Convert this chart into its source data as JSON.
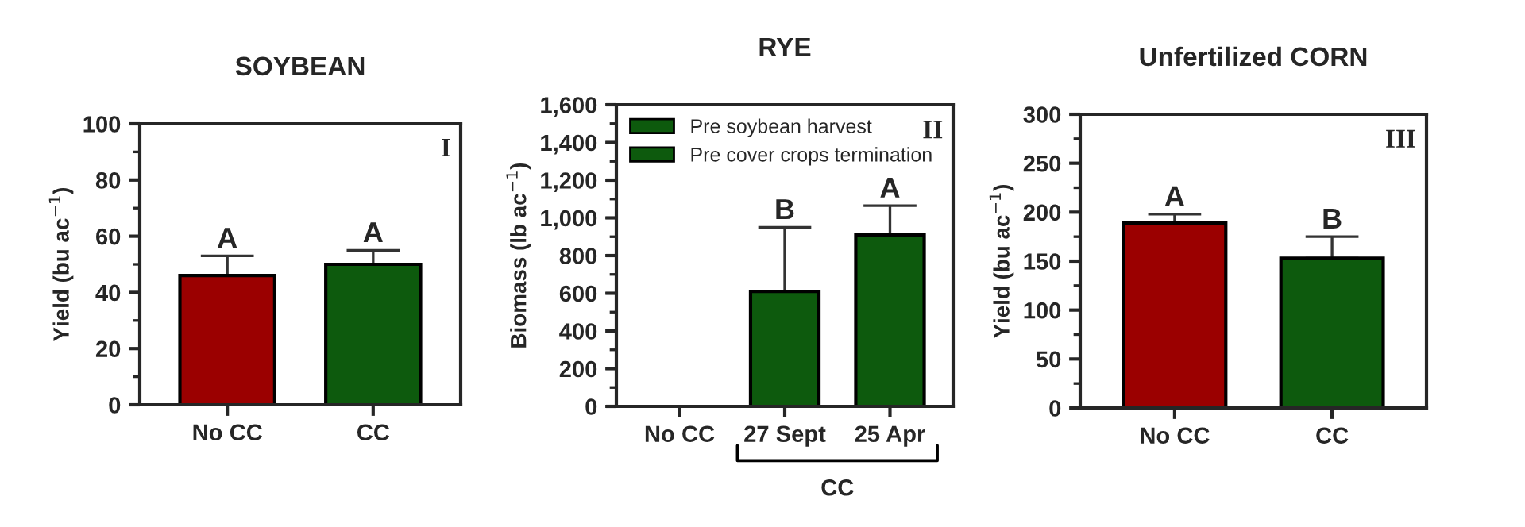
{
  "chart_data": [
    {
      "type": "bar",
      "title": "SOYBEAN",
      "ylabel": "Yield (bu ac$^{−1}$)",
      "categories": [
        "No CC",
        "CC"
      ],
      "values": [
        46,
        50
      ],
      "colors": [
        "#9b0000",
        "#0d5a0d"
      ],
      "errors": [
        [
          46,
          53
        ],
        [
          50,
          55
        ]
      ],
      "ylim": [
        0,
        100
      ],
      "yticks": [
        0,
        20,
        40,
        60,
        80,
        100
      ],
      "grid": false,
      "legend": false,
      "annotations": [
        "I",
        {
          "text": "A",
          "x": "No CC",
          "y": 53
        },
        {
          "text": "A",
          "x": "CC",
          "y": 55
        }
      ]
    },
    {
      "type": "bar",
      "title": "RYE",
      "ylabel": "Biomass (lb ac$^{−1}$)",
      "xlabel": "CC",
      "categories": [
        "No CC",
        "27 Sept",
        "25 Apr"
      ],
      "series": [
        {
          "name": "Pre soybean harvest",
          "color": "#0d5a0d",
          "values": [
            null,
            610,
            null
          ],
          "errors": [
            null,
            [
              610,
              950
            ],
            null
          ]
        },
        {
          "name": "Pre cover crops termination",
          "color": "#0d5a0d",
          "values": [
            null,
            null,
            910
          ],
          "errors": [
            null,
            null,
            [
              910,
              1065
            ]
          ]
        }
      ],
      "ylim": [
        0,
        1600
      ],
      "yticks": [
        0,
        {
          "value": 200,
          "label": "200"
        },
        {
          "value": 400,
          "label": "400"
        },
        {
          "value": 600,
          "label": "600"
        },
        {
          "value": 800,
          "label": "800"
        },
        {
          "value": 1000,
          "label": "1,000"
        },
        {
          "value": 1200,
          "label": "1,200"
        },
        {
          "value": 1400,
          "label": "1,400"
        },
        {
          "value": 1600,
          "label": "1,600"
        }
      ],
      "grid": false,
      "legend": "top left",
      "annotations": [
        "II",
        {
          "text": "B",
          "x": "27 Sept",
          "y": 950
        },
        {
          "text": "A",
          "x": "25 Apr",
          "y": 1065
        }
      ]
    },
    {
      "type": "bar",
      "title": "Unfertilized CORN",
      "ylabel": "Yield (bu ac$^{−1}$)",
      "categories": [
        "No CC",
        "CC"
      ],
      "values": [
        189,
        153
      ],
      "colors": [
        "#9b0000",
        "#0d5a0d"
      ],
      "errors": [
        [
          189,
          198
        ],
        [
          153,
          175
        ]
      ],
      "ylim": [
        0,
        300
      ],
      "yticks": [
        0,
        50,
        100,
        150,
        200,
        250,
        300
      ],
      "grid": false,
      "legend": false,
      "annotations": [
        "III",
        {
          "text": "A",
          "x": "No CC",
          "y": 198
        },
        {
          "text": "B",
          "x": "CC",
          "y": 175
        }
      ]
    }
  ]
}
